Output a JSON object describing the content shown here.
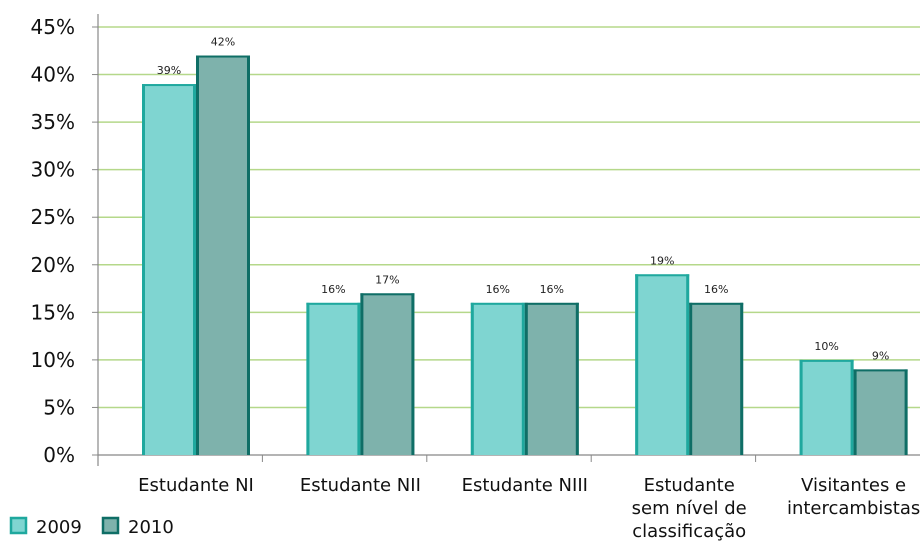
{
  "chart_data": {
    "type": "bar",
    "title": "",
    "xlabel": "",
    "ylabel": "",
    "ylim": [
      0,
      45
    ],
    "y_ticks": [
      0,
      5,
      10,
      15,
      20,
      25,
      30,
      35,
      40,
      45
    ],
    "y_tick_format": "%",
    "grid": "horizontal",
    "legend_position": "bottom-left",
    "categories": [
      [
        "Estudante NI"
      ],
      [
        "Estudante NII"
      ],
      [
        "Estudante NIII"
      ],
      [
        "Estudante",
        "sem nível de",
        "classificação"
      ],
      [
        "Visitantes e",
        "intercambistas"
      ]
    ],
    "series": [
      {
        "name": "2009",
        "values": [
          39,
          16,
          16,
          19,
          10
        ],
        "labels": [
          "39%",
          "16%",
          "16%",
          "19%",
          "10%"
        ],
        "color": "#7fd5d1",
        "edge_color": "#1fa89e"
      },
      {
        "name": "2010",
        "values": [
          42,
          17,
          16,
          16,
          9
        ],
        "labels": [
          "42%",
          "17%",
          "16%",
          "16%",
          "9%"
        ],
        "color": "#7eb2ac",
        "edge_color": "#0f6e66"
      }
    ],
    "colors": {
      "grid": "#b5d88a",
      "axis": "#888888"
    }
  }
}
